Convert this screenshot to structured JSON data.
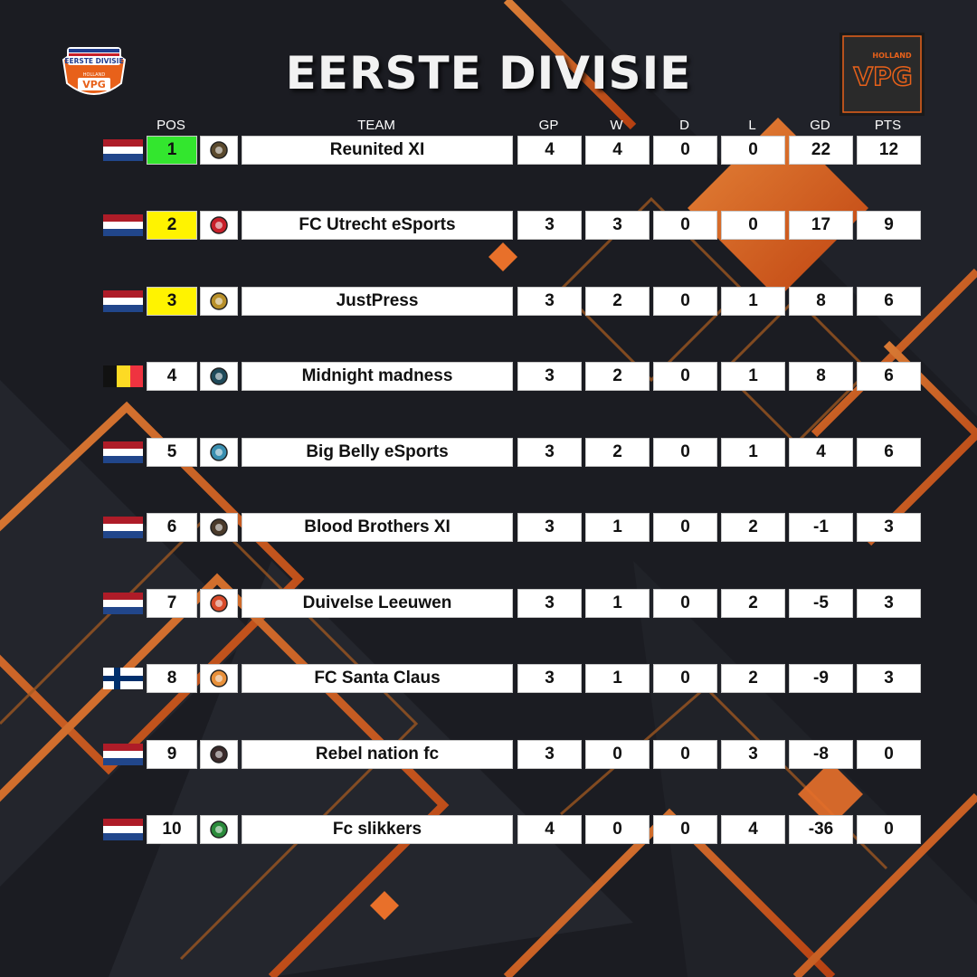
{
  "title": "EERSTE DIVISIE",
  "logo_left": {
    "text_main": "EERSTE DIVISIE",
    "text_sub": "HOLLAND",
    "badge": "VPG"
  },
  "logo_right": {
    "text_sub": "HOLLAND",
    "badge": "VPG"
  },
  "headers": {
    "pos": "POS",
    "team": "TEAM",
    "gp": "GP",
    "w": "W",
    "d": "D",
    "l": "L",
    "gd": "GD",
    "pts": "PTS"
  },
  "colors": {
    "promotion": "#33e62e",
    "playoff": "#fff300",
    "accent": "#e8611a",
    "background": "#1b1c22"
  },
  "rows": [
    {
      "flag": "netherlands-flag",
      "pos": "1",
      "pos_color": "#33e62e",
      "crest": "reunited-xi-crest",
      "team": "Reunited XI",
      "gp": "4",
      "w": "4",
      "d": "0",
      "l": "0",
      "gd": "22",
      "pts": "12"
    },
    {
      "flag": "netherlands-flag",
      "pos": "2",
      "pos_color": "#fff300",
      "crest": "fc-utrecht-crest",
      "team": "FC Utrecht eSports",
      "gp": "3",
      "w": "3",
      "d": "0",
      "l": "0",
      "gd": "17",
      "pts": "9"
    },
    {
      "flag": "netherlands-flag",
      "pos": "3",
      "pos_color": "#fff300",
      "crest": "justpress-crest",
      "team": "JustPress",
      "gp": "3",
      "w": "2",
      "d": "0",
      "l": "1",
      "gd": "8",
      "pts": "6"
    },
    {
      "flag": "belgium-flag",
      "pos": "4",
      "pos_color": "#ffffff",
      "crest": "midnight-madness-crest",
      "team": "Midnight madness",
      "gp": "3",
      "w": "2",
      "d": "0",
      "l": "1",
      "gd": "8",
      "pts": "6"
    },
    {
      "flag": "netherlands-flag",
      "pos": "5",
      "pos_color": "#ffffff",
      "crest": "big-belly-crest",
      "team": "Big Belly eSports",
      "gp": "3",
      "w": "2",
      "d": "0",
      "l": "1",
      "gd": "4",
      "pts": "6"
    },
    {
      "flag": "netherlands-flag",
      "pos": "6",
      "pos_color": "#ffffff",
      "crest": "blood-brothers-crest",
      "team": "Blood Brothers XI",
      "gp": "3",
      "w": "1",
      "d": "0",
      "l": "2",
      "gd": "-1",
      "pts": "3"
    },
    {
      "flag": "netherlands-flag",
      "pos": "7",
      "pos_color": "#ffffff",
      "crest": "duivelse-leeuwen-crest",
      "team": "Duivelse Leeuwen",
      "gp": "3",
      "w": "1",
      "d": "0",
      "l": "2",
      "gd": "-5",
      "pts": "3"
    },
    {
      "flag": "finland-flag",
      "pos": "8",
      "pos_color": "#ffffff",
      "crest": "fc-santa-claus-crest",
      "team": "FC Santa Claus",
      "gp": "3",
      "w": "1",
      "d": "0",
      "l": "2",
      "gd": "-9",
      "pts": "3"
    },
    {
      "flag": "netherlands-flag",
      "pos": "9",
      "pos_color": "#ffffff",
      "crest": "rebel-nation-crest",
      "team": "Rebel nation fc",
      "gp": "3",
      "w": "0",
      "d": "0",
      "l": "3",
      "gd": "-8",
      "pts": "0"
    },
    {
      "flag": "netherlands-flag",
      "pos": "10",
      "pos_color": "#ffffff",
      "crest": "fc-slikkers-crest",
      "team": "Fc slikkers",
      "gp": "4",
      "w": "0",
      "d": "0",
      "l": "4",
      "gd": "-36",
      "pts": "0"
    }
  ]
}
